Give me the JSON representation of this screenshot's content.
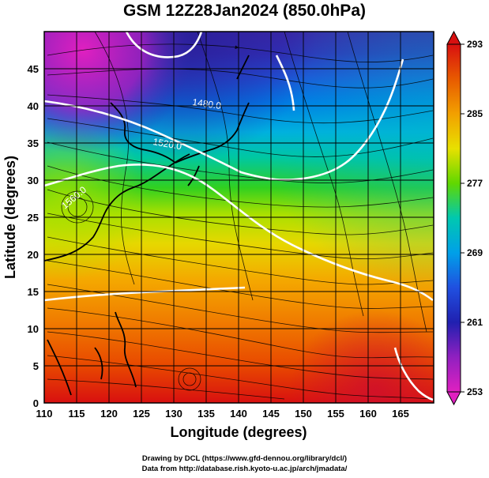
{
  "title": "GSM 12Z28Jan2024 (850.0hPa)",
  "map": {
    "x_axis": {
      "label": "Longitude (degrees)",
      "range": [
        110,
        170
      ],
      "ticks": [
        "110",
        "115",
        "120",
        "125",
        "130",
        "135",
        "140",
        "145",
        "150",
        "155",
        "160",
        "165"
      ]
    },
    "y_axis": {
      "label": "Latitude  (degrees)",
      "range": [
        0,
        50
      ],
      "ticks": [
        "0",
        "5",
        "10",
        "15",
        "20",
        "25",
        "30",
        "35",
        "40",
        "45"
      ]
    },
    "contours": [
      {
        "label": "1480.0"
      },
      {
        "label": "1520.0"
      },
      {
        "label": "1560.0"
      }
    ],
    "colorbar": {
      "ticks": [
        "293",
        "285",
        "277",
        "269",
        "261",
        "253"
      ],
      "colors": [
        "#d81010",
        "#e85a00",
        "#f2a000",
        "#e8e000",
        "#40d000",
        "#00c8b0",
        "#00a0e8",
        "#2040e0",
        "#2020b0",
        "#9020c0",
        "#e020c0"
      ]
    }
  },
  "credits": {
    "line1": "Drawing by DCL (https://www.gfd-dennou.org/library/dcl/)",
    "line2": "Data from http://database.rish.kyoto-u.ac.jp/arch/jmadata/"
  }
}
